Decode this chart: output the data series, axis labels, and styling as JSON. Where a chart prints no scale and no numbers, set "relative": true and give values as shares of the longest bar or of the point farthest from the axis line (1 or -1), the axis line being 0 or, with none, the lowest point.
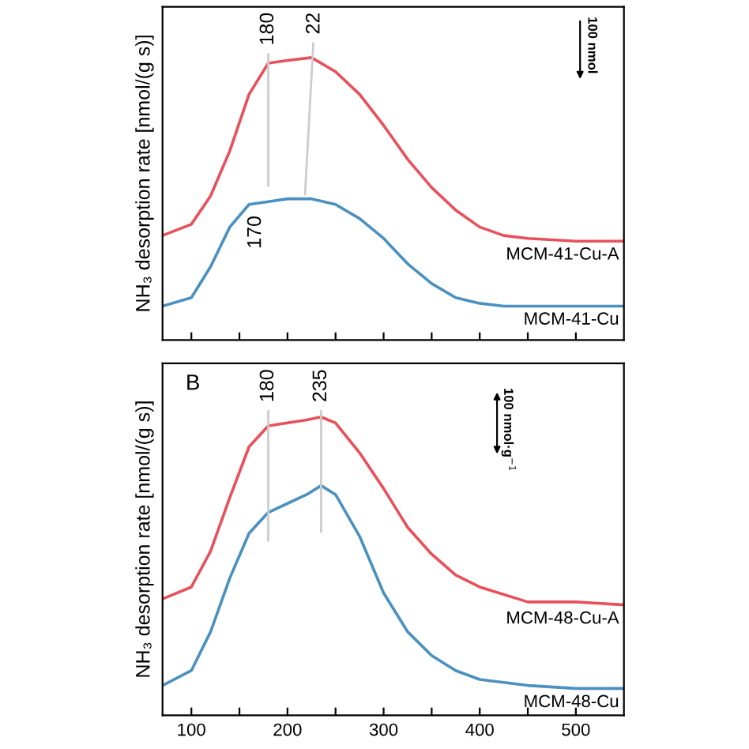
{
  "chart_data": [
    {
      "type": "line",
      "relative": true,
      "ylabel": "NH₃ desorption rate [nmol/(g s)]",
      "tick_labels": false,
      "x": [
        70,
        100,
        120,
        140,
        160,
        180,
        200,
        225,
        250,
        275,
        300,
        325,
        350,
        375,
        400,
        425,
        450,
        500,
        550
      ],
      "xlim": [
        70,
        550
      ],
      "xticks": [
        100,
        {
          "value": 150,
          "label": null
        },
        200,
        {
          "value": 250,
          "label": null
        },
        300,
        {
          "value": 350,
          "label": null
        },
        400,
        {
          "value": 450,
          "label": null
        },
        500
      ],
      "series": [
        {
          "name": "MCM-41-Cu-A",
          "color": "#e8505b",
          "values": [
            0.37,
            0.41,
            0.51,
            0.67,
            0.87,
            0.98,
            0.99,
            1.0,
            0.95,
            0.87,
            0.76,
            0.64,
            0.54,
            0.46,
            0.4,
            0.37,
            0.36,
            0.35,
            0.35
          ]
        },
        {
          "name": "MCM-41-Cu",
          "color": "#4a90c0",
          "values": [
            0.12,
            0.15,
            0.26,
            0.4,
            0.48,
            0.49,
            0.5,
            0.5,
            0.48,
            0.43,
            0.36,
            0.27,
            0.2,
            0.15,
            0.13,
            0.12,
            0.12,
            0.12,
            0.12
          ]
        }
      ],
      "annotations": [
        {
          "text": "180",
          "x": 180,
          "y": 0.98
        },
        {
          "text": "22",
          "x": 228,
          "y": 1.0
        },
        {
          "text": "170",
          "x": 170,
          "y": 0.49
        },
        "100 nmol"
      ]
    },
    {
      "type": "line",
      "relative": true,
      "ylabel": "NH₃ desorption rate [nmol/(g s)]",
      "tick_labels": "x",
      "x": [
        70,
        100,
        120,
        140,
        160,
        180,
        200,
        220,
        235,
        250,
        275,
        300,
        325,
        350,
        375,
        400,
        450,
        500,
        550
      ],
      "xlim": [
        70,
        550
      ],
      "xticks": [
        100,
        {
          "value": 150,
          "label": null
        },
        200,
        {
          "value": 250,
          "label": null
        },
        300,
        {
          "value": 350,
          "label": null
        },
        400,
        {
          "value": 450,
          "label": null
        },
        500
      ],
      "series": [
        {
          "name": "MCM-48-Cu-A",
          "color": "#e8505b",
          "values": [
            0.39,
            0.43,
            0.55,
            0.73,
            0.9,
            0.97,
            0.98,
            0.99,
            1.0,
            0.98,
            0.88,
            0.76,
            0.63,
            0.54,
            0.47,
            0.43,
            0.38,
            0.38,
            0.37
          ]
        },
        {
          "name": "MCM-48-Cu",
          "color": "#4a90c0",
          "values": [
            0.1,
            0.15,
            0.28,
            0.46,
            0.61,
            0.68,
            0.71,
            0.74,
            0.77,
            0.74,
            0.6,
            0.41,
            0.28,
            0.2,
            0.15,
            0.12,
            0.1,
            0.09,
            0.09
          ]
        }
      ],
      "annotations": [
        "B",
        {
          "text": "180",
          "x": 180,
          "y": 0.97
        },
        {
          "text": "235",
          "x": 235,
          "y": 1.0
        },
        "100 nmol·g$^{−1}$"
      ]
    }
  ]
}
